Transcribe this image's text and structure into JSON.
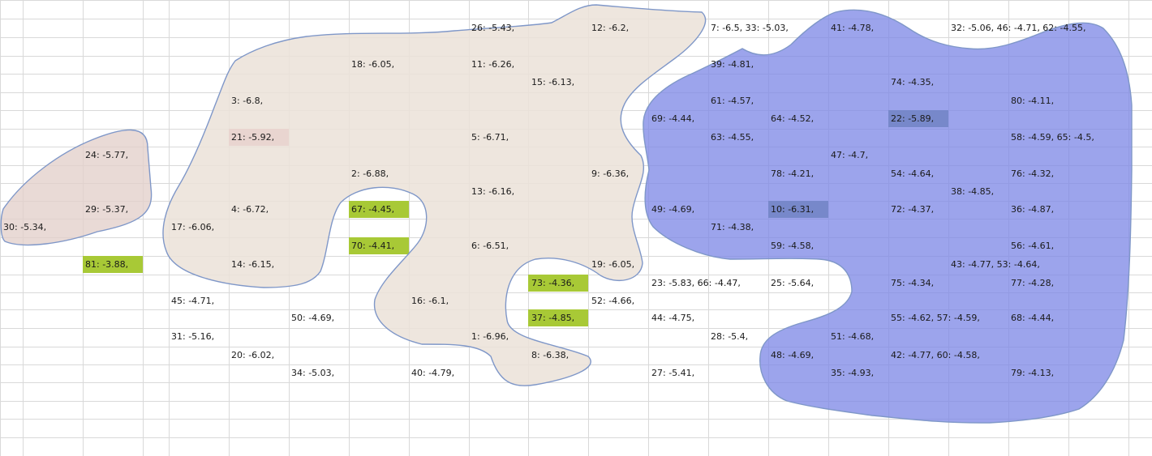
{
  "colors": {
    "grid_line": "#d9d9d9",
    "pink_region_fill": "#e3cfcb",
    "beige_region_fill": "#ebe2d8",
    "blue_region_fill": "#9ba4ea",
    "region_outline": "#7f97c8",
    "highlight_green": "#a8c936",
    "highlight_pink": "#dc8ba2",
    "highlight_dark_green": "#6b8f7a"
  },
  "labels": [
    {
      "text": "26: -5.43,"
    },
    {
      "text": "12: -6.2,"
    },
    {
      "text": "7: -6.5, 33: -5.03,"
    },
    {
      "text": "41: -4.78,"
    },
    {
      "text": "32: -5.06, 46: -4.71, 62: -4.55,"
    },
    {
      "text": "18: -6.05,"
    },
    {
      "text": "11: -6.26,"
    },
    {
      "text": "39: -4.81,"
    },
    {
      "text": "15: -6.13,"
    },
    {
      "text": "74: -4.35,"
    },
    {
      "text": "3: -6.8,"
    },
    {
      "text": "61: -4.57,"
    },
    {
      "text": "80: -4.11,"
    },
    {
      "text": "69: -4.44,"
    },
    {
      "text": "64: -4.52,"
    },
    {
      "text": "22: -5.89,"
    },
    {
      "text": "21: -5.92,"
    },
    {
      "text": "5: -6.71,"
    },
    {
      "text": "63: -4.55,"
    },
    {
      "text": "58: -4.59, 65: -4.5,"
    },
    {
      "text": "24: -5.77,"
    },
    {
      "text": "47: -4.7,"
    },
    {
      "text": "2: -6.88,"
    },
    {
      "text": "9: -6.36,"
    },
    {
      "text": "78: -4.21,"
    },
    {
      "text": "54: -4.64,"
    },
    {
      "text": "76: -4.32,"
    },
    {
      "text": "13: -6.16,"
    },
    {
      "text": "38: -4.85,"
    },
    {
      "text": "29: -5.37,"
    },
    {
      "text": "4: -6.72,"
    },
    {
      "text": "67: -4.45,"
    },
    {
      "text": "49: -4.69,"
    },
    {
      "text": "10: -6.31,"
    },
    {
      "text": "72: -4.37,"
    },
    {
      "text": "36: -4.87,"
    },
    {
      "text": "30: -5.34,"
    },
    {
      "text": "17: -6.06,"
    },
    {
      "text": "71: -4.38,"
    },
    {
      "text": "70: -4.41,"
    },
    {
      "text": "6: -6.51,"
    },
    {
      "text": "59: -4.58,"
    },
    {
      "text": "56: -4.61,"
    },
    {
      "text": "81: -3.88,"
    },
    {
      "text": "14: -6.15,"
    },
    {
      "text": "19: -6.05,"
    },
    {
      "text": "43: -4.77, 53: -4.64,"
    },
    {
      "text": "73: -4.36,"
    },
    {
      "text": "23: -5.83, 66: -4.47,"
    },
    {
      "text": "25: -5.64,"
    },
    {
      "text": "75: -4.34,"
    },
    {
      "text": "77: -4.28,"
    },
    {
      "text": "45: -4.71,"
    },
    {
      "text": "16: -6.1,"
    },
    {
      "text": "52: -4.66,"
    },
    {
      "text": "50: -4.69,"
    },
    {
      "text": "37: -4.85,"
    },
    {
      "text": "44: -4.75,"
    },
    {
      "text": "55: -4.62, 57: -4.59,"
    },
    {
      "text": "68: -4.44,"
    },
    {
      "text": "31: -5.16,"
    },
    {
      "text": "1: -6.96,"
    },
    {
      "text": "28: -5.4,"
    },
    {
      "text": "51: -4.68,"
    },
    {
      "text": "20: -6.02,"
    },
    {
      "text": "8: -6.38,"
    },
    {
      "text": "48: -4.69,"
    },
    {
      "text": "42: -4.77, 60: -4.58,"
    },
    {
      "text": "34: -5.03,"
    },
    {
      "text": "40: -4.79,"
    },
    {
      "text": "27: -5.41,"
    },
    {
      "text": "35: -4.93,"
    },
    {
      "text": "79: -4.13,"
    }
  ]
}
